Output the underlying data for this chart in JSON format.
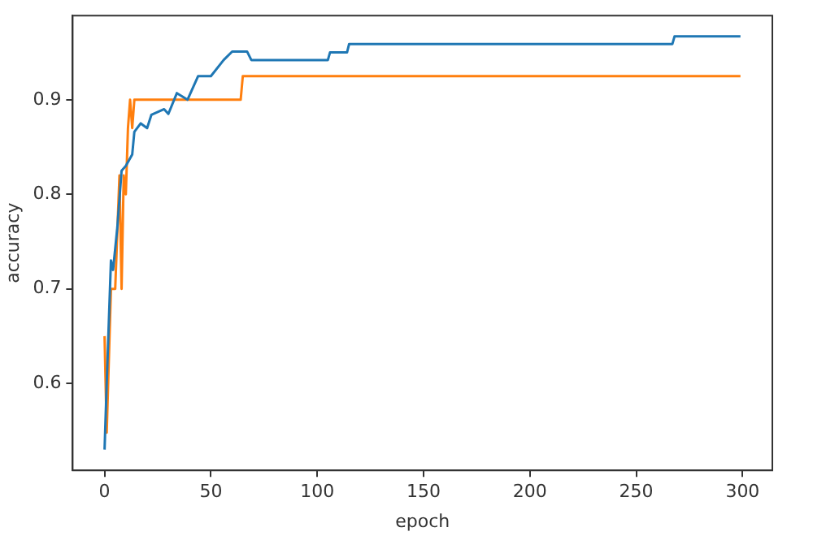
{
  "chart_data": {
    "type": "line",
    "xlabel": "epoch",
    "ylabel": "accuracy",
    "xlim": [
      -15,
      314
    ],
    "xticks": [
      0,
      50,
      100,
      150,
      200,
      250,
      300
    ],
    "ylim": [
      0.508,
      0.989
    ],
    "yticks": [
      0.6,
      0.7,
      0.8,
      0.9
    ],
    "grid": false,
    "legend": false,
    "marker": "none",
    "line_style": "solid",
    "series": [
      {
        "color": "#1f77b4",
        "x": [
          0,
          1,
          3,
          4,
          6,
          8,
          10,
          13,
          14,
          17,
          20,
          22,
          28,
          30,
          34,
          39,
          44,
          50,
          56,
          60,
          67,
          69,
          105,
          106,
          114,
          115,
          267,
          268,
          299
        ],
        "values": [
          0.53,
          0.6,
          0.73,
          0.72,
          0.765,
          0.825,
          0.83,
          0.842,
          0.866,
          0.875,
          0.87,
          0.884,
          0.89,
          0.885,
          0.907,
          0.9,
          0.925,
          0.925,
          0.942,
          0.951,
          0.951,
          0.942,
          0.942,
          0.95,
          0.95,
          0.959,
          0.959,
          0.967,
          0.967
        ]
      },
      {
        "color": "#ff7f0e",
        "x": [
          0,
          1,
          3,
          5,
          7,
          8,
          9,
          10,
          11,
          12,
          13,
          14,
          64,
          65,
          299
        ],
        "values": [
          0.65,
          0.548,
          0.7,
          0.7,
          0.82,
          0.7,
          0.82,
          0.8,
          0.87,
          0.9,
          0.87,
          0.9,
          0.9,
          0.925,
          0.925
        ]
      }
    ]
  }
}
